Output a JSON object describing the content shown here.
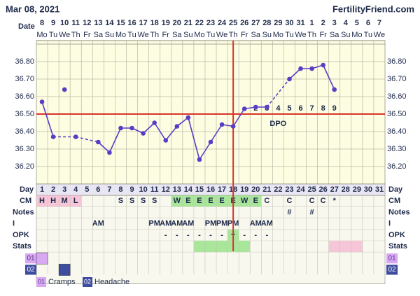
{
  "chart_data": {
    "type": "line",
    "title": "Mar 08, 2021",
    "site": "FertilityFriend.com",
    "date_label": "Date",
    "dates": [
      8,
      9,
      10,
      11,
      12,
      13,
      14,
      15,
      16,
      17,
      18,
      19,
      20,
      21,
      22,
      23,
      24,
      25,
      26,
      27,
      28,
      29,
      30,
      31,
      1,
      2,
      3,
      4,
      5,
      6,
      7
    ],
    "weekdays": [
      "Mo",
      "Tu",
      "We",
      "Th",
      "Fr",
      "Sa",
      "Su",
      "Mo",
      "Tu",
      "We",
      "Th",
      "Fr",
      "Sa",
      "Su",
      "Mo",
      "Tu",
      "We",
      "Th",
      "Fr",
      "Sa",
      "Su",
      "Mo",
      "Tu",
      "We",
      "Th",
      "Fr",
      "Sa",
      "Su",
      "Mo",
      "Tu",
      "We"
    ],
    "ylim": [
      36.1,
      36.9
    ],
    "yticks": [
      {
        "value": 36.2,
        "label": "36.20"
      },
      {
        "value": 36.3,
        "label": "36.30"
      },
      {
        "value": 36.4,
        "label": "36.40"
      },
      {
        "value": 36.5,
        "label": "36.50"
      },
      {
        "value": 36.6,
        "label": "36.60"
      },
      {
        "value": 36.7,
        "label": "36.70"
      },
      {
        "value": 36.8,
        "label": "36.80"
      }
    ],
    "color": "#5b3cc4",
    "values": [
      36.57,
      36.37,
      null,
      36.37,
      null,
      36.34,
      36.28,
      36.42,
      36.42,
      36.39,
      36.45,
      36.35,
      36.43,
      36.48,
      36.24,
      36.34,
      36.44,
      36.43,
      36.53,
      36.54,
      36.54,
      null,
      36.7,
      36.76,
      36.76,
      36.78,
      36.64,
      null,
      null,
      null,
      null
    ],
    "excluded_values": [
      null,
      null,
      36.64,
      null,
      null,
      null,
      null,
      null,
      null,
      null,
      null,
      null,
      null,
      null,
      null,
      null,
      null,
      null,
      null,
      null,
      null,
      null,
      null,
      null,
      null,
      null,
      null,
      null,
      null,
      null,
      null
    ],
    "coverline": 36.5,
    "ovulation_day": 18,
    "dpo_text": "DPO",
    "dpo_labels": [
      null,
      null,
      null,
      null,
      null,
      null,
      null,
      null,
      null,
      null,
      null,
      null,
      null,
      null,
      null,
      null,
      null,
      null,
      null,
      "2",
      "3",
      "4",
      "5",
      "6",
      "7",
      "8",
      "9",
      null,
      null,
      null,
      null
    ],
    "rows": {
      "day_label": "Day",
      "days": [
        1,
        2,
        3,
        4,
        5,
        6,
        7,
        8,
        9,
        10,
        11,
        12,
        13,
        14,
        15,
        16,
        17,
        18,
        19,
        20,
        21,
        22,
        23,
        24,
        25,
        26,
        27,
        28,
        29,
        30,
        31
      ],
      "cm": {
        "label": "CM",
        "values": [
          "H",
          "H",
          "M",
          "L",
          null,
          null,
          null,
          "S",
          "S",
          "S",
          "S",
          null,
          "W",
          "E",
          "E",
          "E",
          "E",
          "E",
          "W",
          "E",
          "C",
          null,
          "C",
          null,
          "C",
          "C",
          "*",
          null,
          null,
          null,
          null
        ],
        "fills": [
          {
            "from": 1,
            "to": 4,
            "color": "#f6c6d8"
          },
          {
            "from": 13,
            "to": 20,
            "color": "#a8e69a"
          }
        ]
      },
      "notes": {
        "label": "Notes",
        "values": [
          null,
          null,
          null,
          null,
          null,
          null,
          null,
          null,
          null,
          null,
          null,
          null,
          null,
          null,
          null,
          null,
          null,
          null,
          null,
          null,
          null,
          null,
          "#",
          null,
          "#",
          null,
          null,
          null,
          null,
          null,
          null
        ],
        "fills": []
      },
      "i": {
        "label": "I",
        "values": [
          null,
          null,
          null,
          null,
          null,
          "AM",
          null,
          null,
          null,
          null,
          "PM",
          "AM",
          "AM",
          "AM",
          null,
          "PM",
          "PM",
          "PM",
          null,
          "AM",
          "AM",
          null,
          null,
          null,
          null,
          null,
          null,
          null,
          null,
          null,
          null
        ],
        "fills": []
      },
      "opk": {
        "label": "OPK",
        "values": [
          null,
          null,
          null,
          null,
          null,
          null,
          null,
          null,
          null,
          null,
          null,
          "-",
          "-",
          "-",
          "-",
          "-",
          "-",
          "+",
          "-",
          "-",
          "-",
          null,
          null,
          null,
          null,
          null,
          null,
          null,
          null,
          null,
          null
        ],
        "fills": [
          {
            "from": 18,
            "to": 18,
            "color": "#a8e69a"
          }
        ]
      },
      "stats": {
        "label": "Stats",
        "values": [
          null,
          null,
          null,
          null,
          null,
          null,
          null,
          null,
          null,
          null,
          null,
          null,
          null,
          null,
          null,
          null,
          null,
          null,
          null,
          null,
          null,
          null,
          null,
          null,
          null,
          null,
          null,
          null,
          null,
          null,
          null
        ],
        "fills": [
          {
            "from": 15,
            "to": 19,
            "color": "#a8e69a"
          },
          {
            "from": 27,
            "to": 29,
            "color": "#f6c6d8"
          }
        ]
      }
    },
    "symptoms": [
      {
        "code": "01",
        "name": "Cramps",
        "color": "#d9a8f3",
        "days": [
          1
        ]
      },
      {
        "code": "02",
        "name": "Headache",
        "color": "#3f4da0",
        "days": [
          3
        ]
      }
    ]
  }
}
